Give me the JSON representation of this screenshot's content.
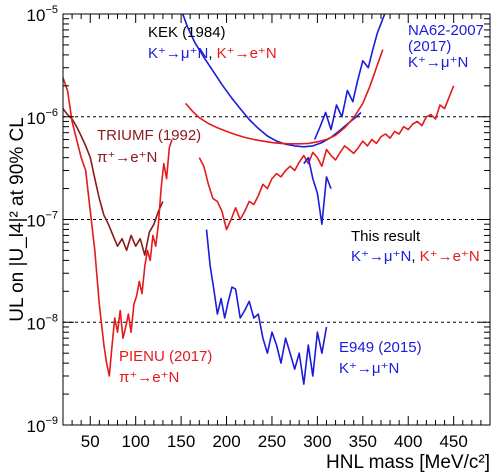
{
  "chart_data": {
    "type": "line",
    "xlabel": "HNL mass [MeV/c²]",
    "ylabel": "UL on |U_l4|² at 90% CL",
    "xlim": [
      20,
      490
    ],
    "ylim": [
      1e-09,
      1e-05
    ],
    "yscale": "log",
    "x_ticks": [
      50,
      100,
      150,
      200,
      250,
      300,
      350,
      400,
      450
    ],
    "y_ticks": [
      {
        "value": 1e-09,
        "base": "10",
        "exp": "−9"
      },
      {
        "value": 1e-08,
        "base": "10",
        "exp": "−8"
      },
      {
        "value": 1e-07,
        "base": "10",
        "exp": "−7"
      },
      {
        "value": 1e-06,
        "base": "10",
        "exp": "−6"
      },
      {
        "value": 1e-05,
        "base": "10",
        "exp": "−5"
      }
    ],
    "reference_lines": [
      1e-08,
      1e-07,
      1e-06
    ],
    "grid": false,
    "colors": {
      "blue": "#1b1bdc",
      "red": "#e41a1c",
      "darkred": "#8b1a1a",
      "black": "#000000"
    },
    "series": [
      {
        "color": "blue",
        "x": [
          150,
          157,
          165,
          175,
          185,
          195,
          205,
          215,
          225,
          235,
          245,
          255,
          265,
          275,
          285,
          295,
          305,
          315,
          325,
          335,
          343,
          348
        ],
        "y": [
          1.1e-05,
          7.5e-06,
          5.3e-06,
          3.8e-06,
          2.8e-06,
          2.05e-06,
          1.55e-06,
          1.2e-06,
          9.4e-07,
          7.7e-07,
          6.5e-07,
          5.8e-07,
          5.4e-07,
          5.2e-07,
          5.1e-07,
          5.2e-07,
          5.6e-07,
          6.3e-07,
          7.4e-07,
          8.8e-07,
          1e-06,
          1.1e-06
        ]
      },
      {
        "color": "red",
        "x": [
          155,
          163,
          170,
          180,
          190,
          200,
          210,
          220,
          230,
          240,
          250,
          260,
          270,
          280,
          290,
          300,
          310,
          320,
          330,
          340,
          350,
          358,
          365,
          372
        ],
        "y": [
          1.35e-06,
          1.12e-06,
          9.8e-07,
          8.6e-07,
          7.8e-07,
          7.2e-07,
          6.7e-07,
          6.3e-07,
          6e-07,
          5.8e-07,
          5.6e-07,
          5.5e-07,
          5.45e-07,
          5.45e-07,
          5.5e-07,
          5.7e-07,
          6e-07,
          6.6e-07,
          7.8e-07,
          9.8e-07,
          1.35e-06,
          2e-06,
          3e-06,
          4.5e-06
        ]
      },
      {
        "color": "blue",
        "x": [
          297,
          303,
          309,
          315,
          321,
          327,
          333,
          339,
          344,
          350,
          356,
          361,
          366,
          371,
          375
        ],
        "y": [
          6e-07,
          8e-07,
          1.1e-06,
          7.5e-07,
          1.3e-06,
          1e-06,
          1.8e-06,
          1.4e-06,
          2.2e-06,
          3.5e-06,
          3e-06,
          4.5e-06,
          6.5e-06,
          8.5e-06,
          1.05e-05
        ]
      },
      {
        "color": "blue",
        "x": [
          178,
          182,
          186,
          190,
          194,
          198,
          202,
          206,
          210,
          215,
          220,
          225,
          230,
          235,
          240,
          245,
          250,
          255,
          260,
          265,
          270,
          275,
          280,
          285,
          290,
          295,
          300,
          305,
          310
        ],
        "y": [
          8e-08,
          3.5e-08,
          2.1e-08,
          1.2e-08,
          1.7e-08,
          1.1e-08,
          1.6e-08,
          2.2e-08,
          2.1e-08,
          1.1e-08,
          1.3e-08,
          1.6e-08,
          1.1e-08,
          1.2e-08,
          7e-09,
          5e-09,
          8e-09,
          6e-09,
          4e-09,
          7e-09,
          5e-09,
          3.5e-09,
          5e-09,
          2.5e-09,
          6e-09,
          3e-09,
          8e-09,
          5e-09,
          9e-09
        ]
      },
      {
        "color": "red",
        "x": [
          170,
          175,
          180,
          185,
          190,
          195,
          200,
          205,
          210,
          215,
          220,
          225,
          230,
          235,
          240,
          245,
          250,
          255,
          260,
          265,
          270,
          275,
          280,
          285,
          290,
          295,
          300,
          305,
          310,
          315,
          320,
          325,
          330,
          335,
          340,
          345,
          350,
          355,
          360,
          365,
          370,
          375,
          380,
          385,
          390,
          395,
          400,
          405,
          410,
          415,
          420,
          425,
          430,
          435,
          440,
          445,
          450
        ],
        "y": [
          4e-07,
          3.3e-07,
          2.2e-07,
          1.6e-07,
          1.5e-07,
          1.2e-07,
          8e-08,
          1e-07,
          1.3e-07,
          1e-07,
          1.2e-07,
          1.5e-07,
          1.4e-07,
          1.7e-07,
          2.2e-07,
          2e-07,
          2.5e-07,
          2.8e-07,
          2.6e-07,
          3e-07,
          3.3e-07,
          3e-07,
          3.6e-07,
          4.2e-07,
          3.5e-07,
          4.5e-07,
          4e-07,
          3.3e-07,
          4.8e-07,
          4.2e-07,
          3.8e-07,
          4.5e-07,
          5.2e-07,
          4.8e-07,
          4.4e-07,
          5e-07,
          5.8e-07,
          5.2e-07,
          6e-07,
          5.5e-07,
          6.4e-07,
          6.8e-07,
          6.2e-07,
          7.2e-07,
          6.8e-07,
          8e-07,
          7.5e-07,
          8.5e-07,
          9e-07,
          8.2e-07,
          1e-06,
          1.05e-06,
          9.5e-07,
          1.3e-06,
          1.2e-06,
          1.55e-06,
          2e-06
        ]
      },
      {
        "color": "blue",
        "x": [
          285,
          290,
          295,
          300,
          305,
          310,
          315
        ],
        "y": [
          3.5e-07,
          4e-07,
          2.5e-07,
          1.8e-07,
          9e-08,
          2.6e-07,
          2e-07
        ]
      },
      {
        "color": "darkred",
        "x": [
          20,
          25,
          30,
          35,
          40,
          45,
          50,
          55,
          60,
          65,
          70,
          75,
          80,
          85,
          90,
          95,
          100,
          105,
          110,
          115,
          120,
          125,
          130
        ],
        "y": [
          1.2e-06,
          1.05e-06,
          9.5e-07,
          8e-07,
          6.5e-07,
          5.2e-07,
          4e-07,
          2.5e-07,
          1.6e-07,
          1.1e-07,
          9e-08,
          7e-08,
          5.5e-08,
          6.5e-08,
          5e-08,
          7e-08,
          5.5e-08,
          6.5e-08,
          4.5e-08,
          7.5e-08,
          9e-08,
          1.2e-07,
          1.5e-07
        ]
      },
      {
        "color": "red",
        "x": [
          20,
          25,
          30,
          35,
          40,
          45,
          50,
          55,
          60,
          65,
          68,
          71,
          74,
          77,
          80,
          83,
          86,
          89,
          92,
          95,
          98,
          101,
          104,
          107,
          110,
          113,
          116,
          119,
          122,
          125,
          128,
          131,
          134,
          137,
          140
        ],
        "y": [
          2.4e-06,
          1.8e-06,
          9e-07,
          6e-07,
          4e-07,
          3e-07,
          1.2e-07,
          5e-08,
          1.5e-08,
          6e-09,
          4e-09,
          3e-09,
          6e-09,
          1.1e-08,
          8e-09,
          1.3e-08,
          7e-09,
          9e-09,
          1.2e-08,
          8e-09,
          1.5e-08,
          1.8e-08,
          2.5e-08,
          1.9e-08,
          3.5e-08,
          5e-08,
          4e-08,
          7e-08,
          5.5e-08,
          9e-08,
          2e-07,
          3.5e-07,
          2.5e-07,
          5e-07,
          6e-07
        ]
      }
    ],
    "annotations": [
      {
        "parts": [
          {
            "t": "KEK (1984)",
            "c": "black"
          }
        ]
      },
      {
        "parts": [
          {
            "t": "K⁺→μ⁺N",
            "c": "blue"
          },
          {
            "t": ", ",
            "c": "black"
          },
          {
            "t": "K⁺→e⁺N",
            "c": "red"
          }
        ]
      },
      {
        "parts": [
          {
            "t": "NA62-2007",
            "c": "blue"
          }
        ]
      },
      {
        "parts": [
          {
            "t": "(2017)",
            "c": "blue"
          }
        ]
      },
      {
        "parts": [
          {
            "t": "K⁺→μ⁺N",
            "c": "blue"
          }
        ]
      },
      {
        "parts": [
          {
            "t": "TRIUMF (1992)",
            "c": "darkred"
          }
        ]
      },
      {
        "parts": [
          {
            "t": "π⁺→e⁺N",
            "c": "darkred"
          }
        ]
      },
      {
        "parts": [
          {
            "t": "This result",
            "c": "black"
          }
        ]
      },
      {
        "parts": [
          {
            "t": "K⁺→μ⁺N",
            "c": "blue"
          },
          {
            "t": ", ",
            "c": "black"
          },
          {
            "t": "K⁺→e⁺N",
            "c": "red"
          }
        ]
      },
      {
        "parts": [
          {
            "t": "PIENU (2017)",
            "c": "red"
          }
        ]
      },
      {
        "parts": [
          {
            "t": "π⁺→e⁺N",
            "c": "red"
          }
        ]
      },
      {
        "parts": [
          {
            "t": "E949 (2015)",
            "c": "blue"
          }
        ]
      },
      {
        "parts": [
          {
            "t": "K⁺→μ⁺N",
            "c": "blue"
          }
        ]
      }
    ]
  }
}
